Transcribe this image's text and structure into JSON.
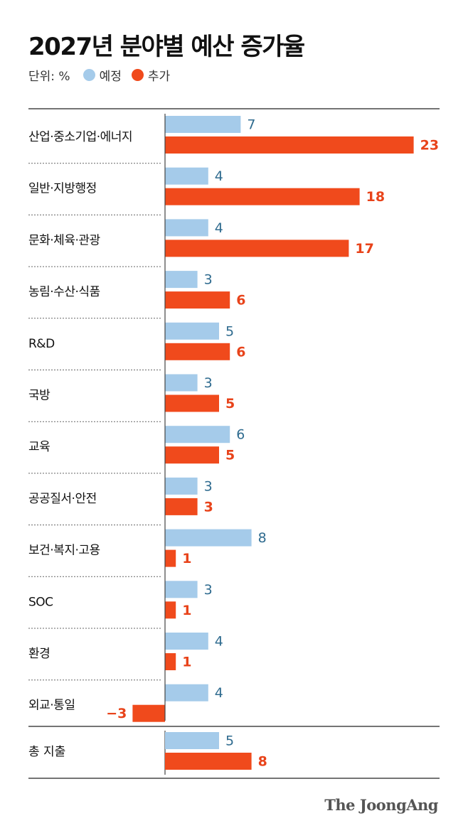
{
  "title": "2027년 분야별 예산 증가율",
  "legend": {
    "unit": "단위: %",
    "items": [
      {
        "label": "예정",
        "color": "#a5cbea"
      },
      {
        "label": "추가",
        "color": "#f04a1c"
      }
    ]
  },
  "colors": {
    "planned": "#a5cbea",
    "added": "#f04a1c",
    "planned_text": "#2f6b8f",
    "added_text": "#e8431a"
  },
  "chart_data": {
    "type": "bar",
    "orientation": "horizontal",
    "categories": [
      "산업·중소기업·에너지",
      "일반·지방행정",
      "문화·체육·관광",
      "농림·수산·식품",
      "R&D",
      "국방",
      "교육",
      "공공질서·안전",
      "보건·복지·고용",
      "SOC",
      "환경",
      "외교·통일"
    ],
    "series": [
      {
        "name": "예정",
        "values": [
          7,
          4,
          4,
          3,
          5,
          3,
          6,
          3,
          8,
          3,
          4,
          4
        ]
      },
      {
        "name": "추가",
        "values": [
          23,
          18,
          17,
          6,
          6,
          5,
          5,
          3,
          1,
          1,
          1,
          -3
        ]
      }
    ],
    "total": {
      "label": "총 지출",
      "values": [
        5,
        8
      ]
    },
    "value_labels": {
      "planned": [
        "7",
        "4",
        "4",
        "3",
        "5",
        "3",
        "6",
        "3",
        "8",
        "3",
        "4",
        "4"
      ],
      "added": [
        "23",
        "18",
        "17",
        "6",
        "6",
        "5",
        "5",
        "3",
        "1",
        "1",
        "1",
        "−3"
      ],
      "total": [
        "5",
        "8"
      ]
    }
  },
  "source_logo": "The JoongAng"
}
